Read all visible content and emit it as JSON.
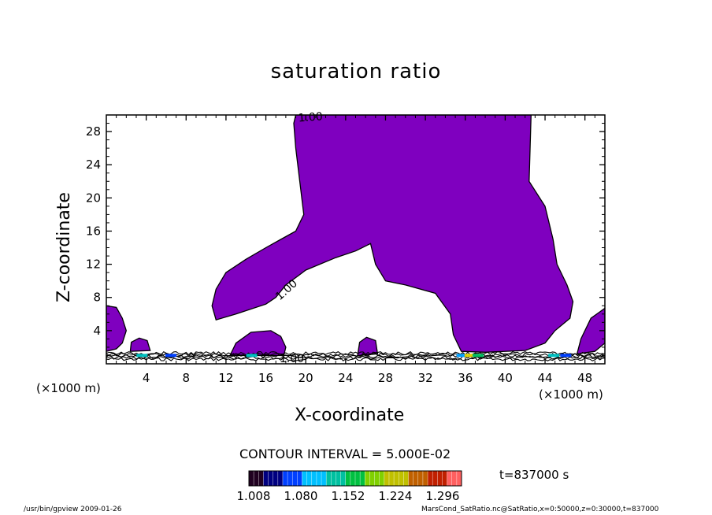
{
  "chart_data": {
    "type": "contour",
    "title": "saturation ratio",
    "xlabel": "X-coordinate",
    "ylabel": "Z-coordinate",
    "x_unit": "(×1000 m)",
    "z_unit": "(×1000 m)",
    "xlim": [
      0,
      50
    ],
    "zlim": [
      0,
      30
    ],
    "x_ticks": [
      4,
      8,
      12,
      16,
      20,
      24,
      28,
      32,
      36,
      40,
      44,
      48
    ],
    "z_ticks": [
      4,
      8,
      12,
      16,
      20,
      24,
      28
    ],
    "contour_labels": [
      "1.00",
      "1.00",
      "1.00"
    ],
    "contour_interval": "CONTOUR INTERVAL = 5.000E-02",
    "time": "t=837000 s",
    "colorbar_labels": [
      "1.008",
      "1.080",
      "1.152",
      "1.224",
      "1.296"
    ],
    "fill_color": "#7f00bf",
    "footer_left": "/usr/bin/gpview  2009-01-26",
    "footer_right": "MarsCond_SatRatio.nc@SatRatio,x=0:50000,z=0:30000,t=837000",
    "region_outlines": [
      {
        "name": "main-plume",
        "points": [
          [
            19,
            30
          ],
          [
            42.6,
            30
          ],
          [
            42.4,
            22
          ],
          [
            44,
            19
          ],
          [
            44.8,
            15
          ],
          [
            45.2,
            12
          ],
          [
            46.2,
            9.5
          ],
          [
            46.8,
            7.5
          ],
          [
            46.5,
            5.5
          ],
          [
            45,
            4
          ],
          [
            44,
            2.5
          ],
          [
            42,
            1.6
          ],
          [
            38,
            1.4
          ],
          [
            35.6,
            1.5
          ],
          [
            34.8,
            3.5
          ],
          [
            34.5,
            6
          ],
          [
            33,
            8.5
          ],
          [
            30,
            9.5
          ],
          [
            28,
            10
          ],
          [
            27,
            12
          ],
          [
            26.5,
            14.5
          ],
          [
            25,
            13.6
          ],
          [
            23,
            12.8
          ],
          [
            20,
            11.3
          ],
          [
            18,
            9.5
          ],
          [
            17,
            8
          ],
          [
            16,
            7.2
          ],
          [
            13,
            6
          ],
          [
            11,
            5.3
          ],
          [
            10.6,
            7
          ],
          [
            11,
            9
          ],
          [
            12,
            11
          ],
          [
            14,
            12.6
          ],
          [
            16,
            14
          ],
          [
            17.5,
            15
          ],
          [
            19,
            16
          ],
          [
            19.8,
            18
          ],
          [
            19.4,
            22
          ],
          [
            19,
            26
          ],
          [
            18.8,
            29
          ]
        ]
      },
      {
        "name": "left-edge-blob",
        "points": [
          [
            0,
            7
          ],
          [
            1,
            6.8
          ],
          [
            1.6,
            5.5
          ],
          [
            2,
            4
          ],
          [
            1.6,
            2.5
          ],
          [
            1,
            1.8
          ],
          [
            0,
            1.5
          ]
        ]
      },
      {
        "name": "small-blob-4",
        "points": [
          [
            2.4,
            1.5
          ],
          [
            2.5,
            2.6
          ],
          [
            3.3,
            3.1
          ],
          [
            4.1,
            2.8
          ],
          [
            4.4,
            1.6
          ]
        ]
      },
      {
        "name": "blob-14",
        "points": [
          [
            12.4,
            1
          ],
          [
            13,
            2.5
          ],
          [
            14.5,
            3.8
          ],
          [
            16.5,
            4.0
          ],
          [
            17.5,
            3.3
          ],
          [
            18,
            2
          ],
          [
            17.8,
            1
          ]
        ]
      },
      {
        "name": "small-blob-26",
        "points": [
          [
            25.2,
            1
          ],
          [
            25.4,
            2.6
          ],
          [
            26.1,
            3.2
          ],
          [
            27,
            2.8
          ],
          [
            27.2,
            1.2
          ]
        ]
      },
      {
        "name": "right-edge-blob",
        "points": [
          [
            47.2,
            1.2
          ],
          [
            47.6,
            3
          ],
          [
            48.6,
            5.5
          ],
          [
            50,
            6.7
          ],
          [
            50,
            2.5
          ],
          [
            49,
            1.5
          ]
        ]
      }
    ]
  }
}
